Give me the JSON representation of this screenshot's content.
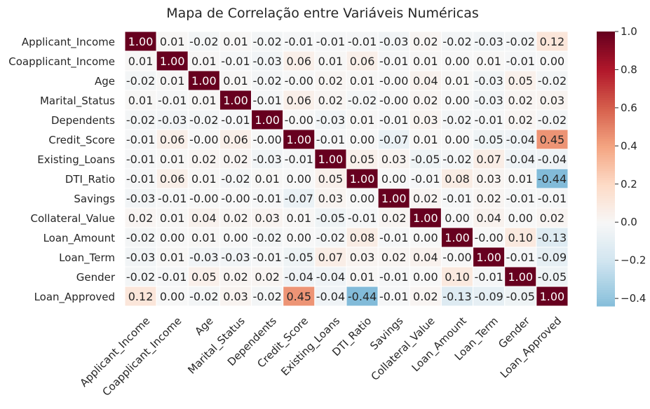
{
  "chart_data": {
    "type": "heatmap",
    "title": "Mapa de Correlação entre Variáveis Numéricas",
    "labels": [
      "Applicant_Income",
      "Coapplicant_Income",
      "Age",
      "Marital_Status",
      "Dependents",
      "Credit_Score",
      "Existing_Loans",
      "DTI_Ratio",
      "Savings",
      "Collateral_Value",
      "Loan_Amount",
      "Loan_Term",
      "Gender",
      "Loan_Approved"
    ],
    "values": [
      [
        1.0,
        0.01,
        -0.02,
        0.01,
        -0.02,
        -0.01,
        -0.01,
        -0.01,
        -0.03,
        0.02,
        -0.02,
        -0.03,
        -0.02,
        0.12
      ],
      [
        0.01,
        1.0,
        0.01,
        -0.01,
        -0.03,
        0.06,
        0.01,
        0.06,
        -0.01,
        0.01,
        0.0,
        0.01,
        -0.01,
        0.0
      ],
      [
        -0.02,
        0.01,
        1.0,
        0.01,
        -0.02,
        -0.0,
        0.02,
        0.01,
        -0.0,
        0.04,
        0.01,
        -0.03,
        0.05,
        -0.02
      ],
      [
        0.01,
        -0.01,
        0.01,
        1.0,
        -0.01,
        0.06,
        0.02,
        -0.02,
        -0.0,
        0.02,
        0.0,
        -0.03,
        0.02,
        0.03
      ],
      [
        -0.02,
        -0.03,
        -0.02,
        -0.01,
        1.0,
        -0.0,
        -0.03,
        0.01,
        -0.01,
        0.03,
        -0.02,
        -0.01,
        0.02,
        -0.02
      ],
      [
        -0.01,
        0.06,
        -0.0,
        0.06,
        -0.0,
        1.0,
        -0.01,
        0.0,
        -0.07,
        0.01,
        0.0,
        -0.05,
        -0.04,
        0.45
      ],
      [
        -0.01,
        0.01,
        0.02,
        0.02,
        -0.03,
        -0.01,
        1.0,
        0.05,
        0.03,
        -0.05,
        -0.02,
        0.07,
        -0.04,
        -0.04
      ],
      [
        -0.01,
        0.06,
        0.01,
        -0.02,
        0.01,
        0.0,
        0.05,
        1.0,
        0.0,
        -0.01,
        0.08,
        0.03,
        0.01,
        -0.44
      ],
      [
        -0.03,
        -0.01,
        -0.0,
        -0.0,
        -0.01,
        -0.07,
        0.03,
        0.0,
        1.0,
        0.02,
        -0.01,
        0.02,
        -0.01,
        -0.01
      ],
      [
        0.02,
        0.01,
        0.04,
        0.02,
        0.03,
        0.01,
        -0.05,
        -0.01,
        0.02,
        1.0,
        0.0,
        0.04,
        0.0,
        0.02
      ],
      [
        -0.02,
        0.0,
        0.01,
        0.0,
        -0.02,
        0.0,
        -0.02,
        0.08,
        -0.01,
        0.0,
        1.0,
        -0.0,
        0.1,
        -0.13
      ],
      [
        -0.03,
        0.01,
        -0.03,
        -0.03,
        -0.01,
        -0.05,
        0.07,
        0.03,
        0.02,
        0.04,
        -0.0,
        1.0,
        -0.01,
        -0.09
      ],
      [
        -0.02,
        -0.01,
        0.05,
        0.02,
        0.02,
        -0.04,
        -0.04,
        0.01,
        -0.01,
        0.0,
        0.1,
        -0.01,
        1.0,
        -0.05
      ],
      [
        0.12,
        0.0,
        -0.02,
        0.03,
        -0.02,
        0.45,
        -0.04,
        -0.44,
        -0.01,
        0.02,
        -0.13,
        -0.09,
        -0.05,
        1.0
      ]
    ],
    "value_labels": [
      [
        "1.00",
        "0.01",
        "-0.02",
        "0.01",
        "-0.02",
        "-0.01",
        "-0.01",
        "-0.01",
        "-0.03",
        "0.02",
        "-0.02",
        "-0.03",
        "-0.02",
        "0.12"
      ],
      [
        "0.01",
        "1.00",
        "0.01",
        "-0.01",
        "-0.03",
        "0.06",
        "0.01",
        "0.06",
        "-0.01",
        "0.01",
        "0.00",
        "0.01",
        "-0.01",
        "0.00"
      ],
      [
        "-0.02",
        "0.01",
        "1.00",
        "0.01",
        "-0.02",
        "-0.00",
        "0.02",
        "0.01",
        "-0.00",
        "0.04",
        "0.01",
        "-0.03",
        "0.05",
        "-0.02"
      ],
      [
        "0.01",
        "-0.01",
        "0.01",
        "1.00",
        "-0.01",
        "0.06",
        "0.02",
        "-0.02",
        "-0.00",
        "0.02",
        "0.00",
        "-0.03",
        "0.02",
        "0.03"
      ],
      [
        "-0.02",
        "-0.03",
        "-0.02",
        "-0.01",
        "1.00",
        "-0.00",
        "-0.03",
        "0.01",
        "-0.01",
        "0.03",
        "-0.02",
        "-0.01",
        "0.02",
        "-0.02"
      ],
      [
        "-0.01",
        "0.06",
        "-0.00",
        "0.06",
        "-0.00",
        "1.00",
        "-0.01",
        "0.00",
        "-0.07",
        "0.01",
        "0.00",
        "-0.05",
        "-0.04",
        "0.45"
      ],
      [
        "-0.01",
        "0.01",
        "0.02",
        "0.02",
        "-0.03",
        "-0.01",
        "1.00",
        "0.05",
        "0.03",
        "-0.05",
        "-0.02",
        "0.07",
        "-0.04",
        "-0.04"
      ],
      [
        "-0.01",
        "0.06",
        "0.01",
        "-0.02",
        "0.01",
        "0.00",
        "0.05",
        "1.00",
        "0.00",
        "-0.01",
        "0.08",
        "0.03",
        "0.01",
        "-0.44"
      ],
      [
        "-0.03",
        "-0.01",
        "-0.00",
        "-0.00",
        "-0.01",
        "-0.07",
        "0.03",
        "0.00",
        "1.00",
        "0.02",
        "-0.01",
        "0.02",
        "-0.01",
        "-0.01"
      ],
      [
        "0.02",
        "0.01",
        "0.04",
        "0.02",
        "0.03",
        "0.01",
        "-0.05",
        "-0.01",
        "0.02",
        "1.00",
        "0.00",
        "0.04",
        "0.00",
        "0.02"
      ],
      [
        "-0.02",
        "0.00",
        "0.01",
        "0.00",
        "-0.02",
        "0.00",
        "-0.02",
        "0.08",
        "-0.01",
        "0.00",
        "1.00",
        "-0.00",
        "0.10",
        "-0.13"
      ],
      [
        "-0.03",
        "0.01",
        "-0.03",
        "-0.03",
        "-0.01",
        "-0.05",
        "0.07",
        "0.03",
        "0.02",
        "0.04",
        "-0.00",
        "1.00",
        "-0.01",
        "-0.09"
      ],
      [
        "-0.02",
        "-0.01",
        "0.05",
        "0.02",
        "0.02",
        "-0.04",
        "-0.04",
        "0.01",
        "-0.01",
        "0.00",
        "0.10",
        "-0.01",
        "1.00",
        "-0.05"
      ],
      [
        "0.12",
        "0.00",
        "-0.02",
        "0.03",
        "-0.02",
        "0.45",
        "-0.04",
        "-0.44",
        "-0.01",
        "0.02",
        "-0.13",
        "-0.09",
        "-0.05",
        "1.00"
      ]
    ],
    "colorbar": {
      "vmin": -0.44,
      "vmax": 1.0,
      "center": 0.0,
      "ticks": [
        -0.4,
        -0.2,
        0.0,
        0.2,
        0.4,
        0.6,
        0.8,
        1.0
      ],
      "tick_labels": [
        "−0.4",
        "−0.2",
        "0.0",
        "0.2",
        "0.4",
        "0.6",
        "0.8",
        "1.0"
      ]
    },
    "colormap": "RdBu_r",
    "colors": {
      "negative_end": "#6bacd0",
      "center": "#f7f7f7",
      "positive_end": "#67001f",
      "text_dark": "#262626",
      "text_light": "#ffffff"
    },
    "grid": false,
    "legend": "right"
  }
}
